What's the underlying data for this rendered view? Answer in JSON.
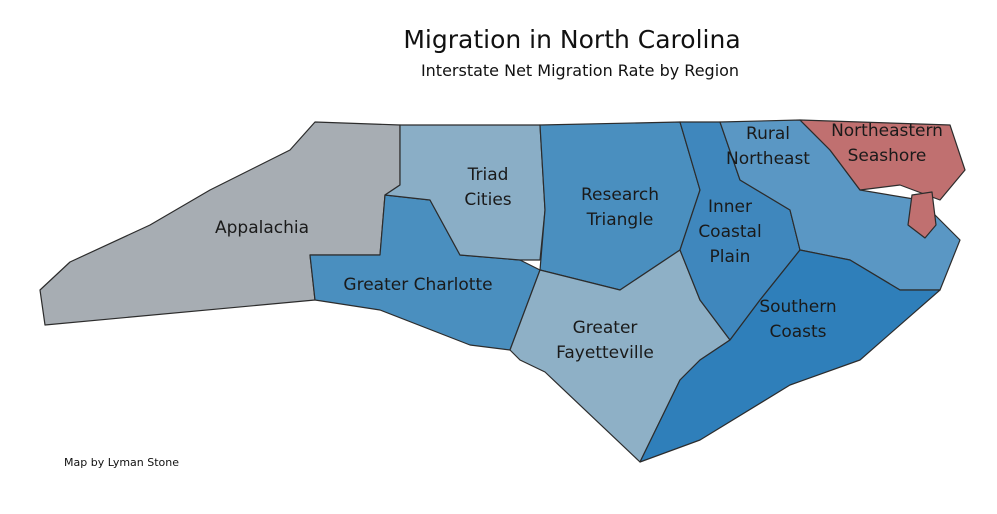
{
  "title": "Migration in North Carolina",
  "subtitle": "Interstate Net Migration Rate by Region",
  "credit": "Map by Lyman Stone",
  "regions": [
    {
      "lines": [
        "Appalachia"
      ]
    },
    {
      "lines": [
        "Greater Charlotte"
      ]
    },
    {
      "lines": [
        "Triad",
        "Cities"
      ]
    },
    {
      "lines": [
        "Research",
        "Triangle"
      ]
    },
    {
      "lines": [
        "Greater",
        "Fayetteville"
      ]
    },
    {
      "lines": [
        "Inner",
        "Coastal",
        "Plain"
      ]
    },
    {
      "lines": [
        "Rural",
        "Northeast"
      ]
    },
    {
      "lines": [
        "Southern",
        "Coasts"
      ]
    },
    {
      "lines": [
        "Northeastern",
        "Seashore"
      ]
    }
  ]
}
